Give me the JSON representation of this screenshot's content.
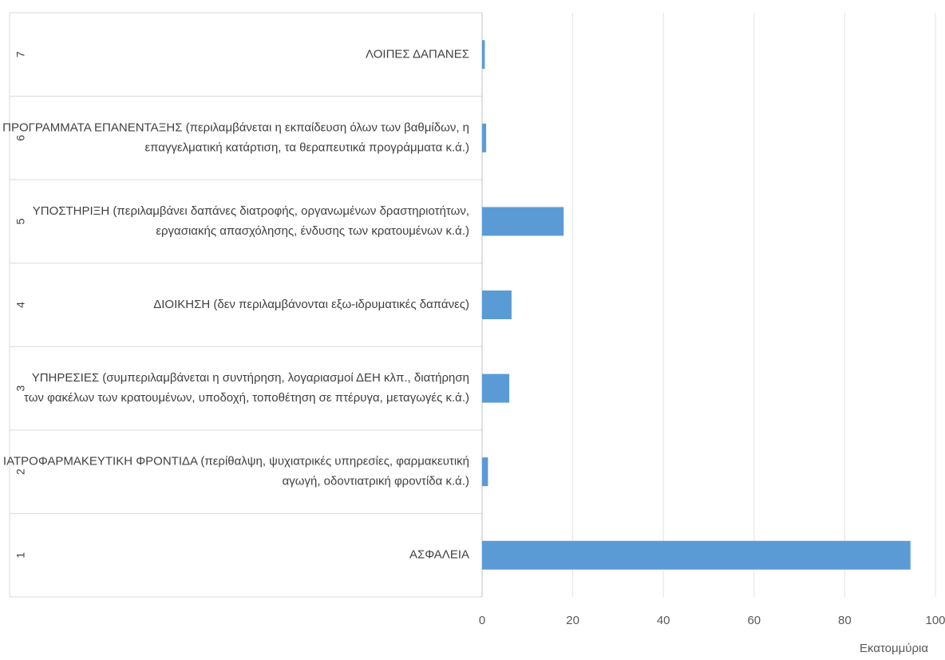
{
  "chart_data": {
    "type": "bar",
    "orientation": "horizontal",
    "title": "",
    "xlabel": "",
    "ylabel": "",
    "units_label": "Εκατομμύρια",
    "xlim": [
      0,
      100
    ],
    "x_ticks": [
      0,
      20,
      40,
      60,
      80,
      100
    ],
    "grid": true,
    "legend": "none",
    "bar_color": "#5B9BD5",
    "categories": [
      {
        "rank": "1",
        "label": "ΑΣΦΑΛΕΙΑ"
      },
      {
        "rank": "2",
        "label": "ΙΑΤΡΟΦΑΡΜΑΚΕΥΤΙΚΗ ΦΡΟΝΤΙΔΑ (περίθαλψη, ψυχιατρικές υπηρεσίες, φαρμακευτική αγωγή, οδοντιατρική φροντίδα κ.ά.)"
      },
      {
        "rank": "3",
        "label": "ΥΠΗΡΕΣΙΕΣ (συμπεριλαμβάνεται η συντήρηση, λογαριασμοί ΔΕΗ κλπ., διατήρηση των φακέλων των κρατουμένων, υποδοχή, τοποθέτηση σε πτέρυγα, μεταγωγές κ.ά.)"
      },
      {
        "rank": "4",
        "label": "ΔΙΟΙΚΗΣΗ (δεν περιλαμβάνονται εξω-ιδρυματικές δαπάνες)"
      },
      {
        "rank": "5",
        "label": "ΥΠΟΣΤΗΡΙΞΗ (περιλαμβάνει δαπάνες διατροφής, οργανωμένων δραστηριοτήτων, εργασιακής απασχόλησης, ένδυσης των κρατουμένων κ.ά.)"
      },
      {
        "rank": "6",
        "label": "ΠΡΟΓΡΑΜΜΑΤΑ ΕΠΑΝΕΝΤΑΞΗΣ (περιλαμβάνεται η εκπαίδευση όλων των βαθμίδων, η επαγγελματική κατάρτιση, τα θεραπευτικά προγράμματα κ.ά.)"
      },
      {
        "rank": "7",
        "label": "ΛΟΙΠΕΣ ΔΑΠΑΝΕΣ"
      }
    ],
    "values": [
      94.5,
      1.3,
      6.0,
      6.5,
      18.0,
      0.9,
      0.6
    ]
  }
}
